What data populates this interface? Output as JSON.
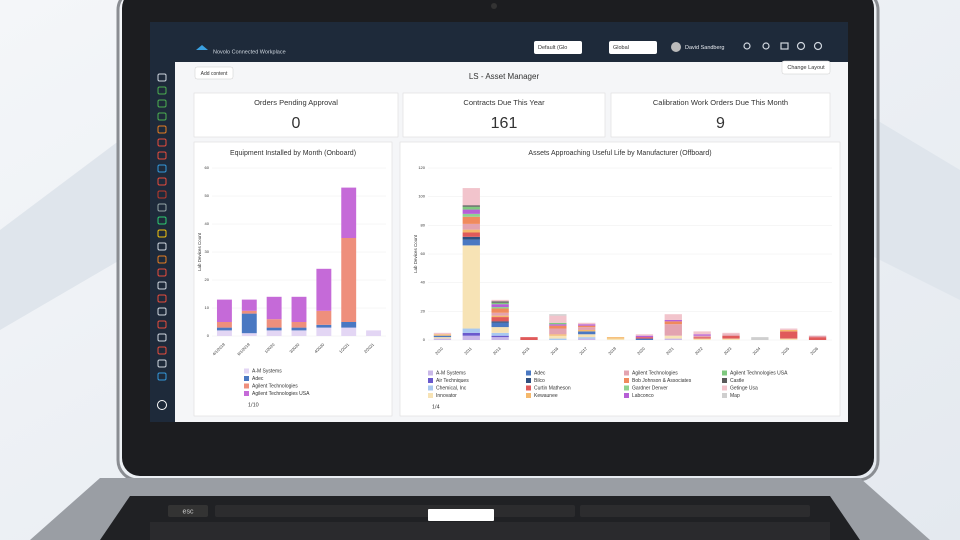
{
  "header": {
    "app_name": "Novolo Connected Workplace",
    "context_select": "Default (Glo",
    "scope_select": "Global",
    "user": "David Sandberg"
  },
  "toolbar": {
    "add_button": "Add content",
    "page_title": "LS - Asset Manager",
    "layout_button": "Change Layout"
  },
  "kpis": [
    {
      "label": "Orders Pending Approval",
      "value": 0
    },
    {
      "label": "Contracts Due This Year",
      "value": 161
    },
    {
      "label": "Calibration Work Orders Due This Month",
      "value": 9
    }
  ],
  "chart_data": [
    {
      "type": "bar",
      "stacked": true,
      "title": "Equipment Installed by Month (Onboard)",
      "y_label": "Lab Devices Count",
      "categories": [
        "4/1/2019",
        "6/1/2019",
        "1/2020",
        "3/2020",
        "4/2020",
        "1/2021",
        "2/2021"
      ],
      "ylim": [
        0,
        60
      ],
      "yticks": [
        0,
        10,
        20,
        30,
        40,
        50,
        60
      ],
      "legend_pager": "1/10",
      "series": [
        {
          "name": "A-M Systems",
          "color": "#e3d6f4",
          "values": [
            2,
            1,
            2,
            2,
            3,
            3,
            2
          ]
        },
        {
          "name": "Adec",
          "color": "#4a78c2",
          "values": [
            1,
            7,
            1,
            1,
            1,
            2,
            0
          ]
        },
        {
          "name": "Agilent Technologies",
          "color": "#ee8f7c",
          "values": [
            2,
            1,
            3,
            2,
            5,
            30,
            0
          ]
        },
        {
          "name": "Agilent Technologies USA",
          "color": "#c56ad8",
          "values": [
            8,
            4,
            8,
            9,
            15,
            18,
            0
          ]
        }
      ]
    },
    {
      "type": "bar",
      "stacked": true,
      "title": "Assets Approaching Useful Life by Manufacturer (Offboard)",
      "y_label": "Lab Devices Count",
      "categories": [
        "2010",
        "2011",
        "2013",
        "2015",
        "2016",
        "2017",
        "2019",
        "2020",
        "2021",
        "2022",
        "2023",
        "2024",
        "2025",
        "2026"
      ],
      "ylim": [
        0,
        120
      ],
      "yticks": [
        0,
        20,
        40,
        60,
        80,
        100,
        120
      ],
      "legend_pager": "1/4",
      "series": [
        {
          "name": "A-M Systems",
          "color": "#c9b8e8",
          "values": [
            1,
            3,
            2,
            0,
            0,
            1,
            0,
            0,
            1,
            0,
            0,
            0,
            0,
            0
          ]
        },
        {
          "name": "Air Techniques",
          "color": "#6a5acd",
          "values": [
            0,
            2,
            1,
            0,
            0,
            0,
            0,
            0,
            0,
            0,
            0,
            0,
            0,
            0
          ]
        },
        {
          "name": "Chemical, Inc",
          "color": "#a8c8f0",
          "values": [
            0,
            3,
            2,
            0,
            1,
            1,
            0,
            0,
            0,
            0,
            0,
            0,
            0,
            0
          ]
        },
        {
          "name": "Innovator",
          "color": "#f7e3b5",
          "values": [
            1,
            58,
            4,
            0,
            2,
            2,
            1,
            0,
            2,
            1,
            1,
            0,
            1,
            0
          ]
        },
        {
          "name": "Adec",
          "color": "#4a78c2",
          "values": [
            1,
            4,
            3,
            0,
            0,
            2,
            0,
            1,
            0,
            0,
            0,
            0,
            0,
            0
          ]
        },
        {
          "name": "Bilco",
          "color": "#2f4f7f",
          "values": [
            0,
            2,
            1,
            0,
            0,
            0,
            0,
            0,
            0,
            0,
            0,
            0,
            0,
            0
          ]
        },
        {
          "name": "Curtin Matheson",
          "color": "#e05a5a",
          "values": [
            0,
            3,
            3,
            2,
            0,
            0,
            0,
            1,
            0,
            1,
            2,
            0,
            5,
            2
          ]
        },
        {
          "name": "Kewaunee",
          "color": "#f5b86b",
          "values": [
            1,
            2,
            1,
            0,
            1,
            1,
            1,
            0,
            0,
            0,
            0,
            0,
            1,
            0
          ]
        },
        {
          "name": "Agilent Technologies",
          "color": "#e3a3b0",
          "values": [
            0,
            4,
            2,
            0,
            4,
            2,
            0,
            0,
            8,
            1,
            1,
            0,
            0,
            1
          ]
        },
        {
          "name": "Bob Johnson & Associates",
          "color": "#f08a5d",
          "values": [
            0,
            5,
            3,
            0,
            2,
            1,
            0,
            0,
            2,
            0,
            0,
            0,
            0,
            0
          ]
        },
        {
          "name": "Gardner Denver",
          "color": "#8fd18f",
          "values": [
            0,
            2,
            1,
            0,
            0,
            0,
            0,
            0,
            0,
            0,
            0,
            0,
            0,
            0
          ]
        },
        {
          "name": "Labconco",
          "color": "#b65fd6",
          "values": [
            0,
            3,
            2,
            0,
            1,
            1,
            0,
            1,
            1,
            1,
            0,
            0,
            0,
            0
          ]
        },
        {
          "name": "Agilent Technologies USA",
          "color": "#7fc97f",
          "values": [
            0,
            2,
            1,
            0,
            1,
            0,
            0,
            0,
            0,
            0,
            0,
            0,
            0,
            0
          ]
        },
        {
          "name": "Castle",
          "color": "#5a5a5a",
          "values": [
            0,
            1,
            1,
            0,
            0,
            0,
            0,
            0,
            0,
            0,
            0,
            0,
            0,
            0
          ]
        },
        {
          "name": "Getinge Usa",
          "color": "#f2c4cc",
          "values": [
            1,
            12,
            1,
            0,
            5,
            1,
            0,
            1,
            4,
            2,
            1,
            0,
            1,
            0
          ]
        },
        {
          "name": "Map",
          "color": "#cfcfcf",
          "values": [
            0,
            0,
            0,
            0,
            1,
            0,
            0,
            0,
            0,
            0,
            0,
            2,
            0,
            0
          ]
        }
      ]
    }
  ],
  "keyboard": {
    "esc_key": "esc"
  }
}
